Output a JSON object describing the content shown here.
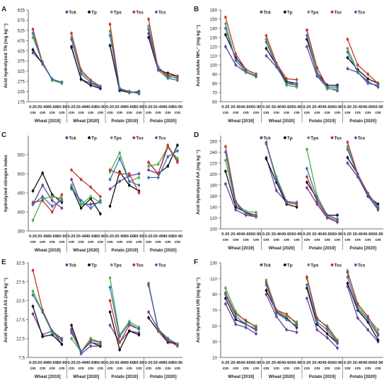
{
  "figure": {
    "tick_rows": [
      "0-20",
      "20-40",
      "40-60",
      "60-90"
    ],
    "unit_row": "cm",
    "groups": [
      "Wheat [2019]",
      "Wheat [2020]",
      "Potato [2019]",
      "Potato [2020]"
    ],
    "series": [
      {
        "name": "Tck",
        "color": "#6a3d9a"
      },
      {
        "name": "Tp",
        "color": "#111111"
      },
      {
        "name": "Tps",
        "color": "#4daf4a"
      },
      {
        "name": "Tss",
        "color": "#c0392b"
      },
      {
        "name": "Tcs",
        "color": "#3b6fb6"
      }
    ]
  },
  "chart_data": [
    {
      "panel": "A",
      "type": "line",
      "ylabel": "Acid hydrolyzed TN (mg kg⁻¹)",
      "ylim": [
        175,
        625
      ],
      "yticks": [
        175,
        225,
        275,
        325,
        375,
        425,
        475,
        525,
        575,
        625
      ],
      "series": [
        {
          "name": "Tck",
          "values": [
            [
              415,
              365,
              285,
              270
            ],
            [
              440,
              285,
              265,
              245
            ],
            [
              450,
              235,
              225,
              215
            ],
            [
              510,
              345,
              300,
              290
            ]
          ]
        },
        {
          "name": "Tp",
          "values": [
            [
              430,
              360,
              285,
              270
            ],
            [
              445,
              285,
              255,
              240
            ],
            [
              450,
              230,
              220,
              225
            ],
            [
              490,
              330,
              315,
              300
            ]
          ]
        },
        {
          "name": "Tps",
          "values": [
            [
              490,
              370,
              280,
              265
            ],
            [
              490,
              320,
              280,
              250
            ],
            [
              520,
              240,
              225,
              220
            ],
            [
              545,
              340,
              295,
              295
            ]
          ]
        },
        {
          "name": "Tss",
          "values": [
            [
              530,
              365,
              285,
              270
            ],
            [
              510,
              330,
              280,
              250
            ],
            [
              555,
              240,
              225,
              215
            ],
            [
              580,
              335,
              305,
              300
            ]
          ]
        },
        {
          "name": "Tcs",
          "values": [
            [
              510,
              360,
              285,
              270
            ],
            [
              480,
              310,
              270,
              250
            ],
            [
              500,
              240,
              222,
              218
            ],
            [
              530,
              330,
              290,
              280
            ]
          ]
        }
      ]
    },
    {
      "panel": "B",
      "type": "line",
      "ylabel": "Acid soluble NH₄⁺ (mg kg⁻¹)",
      "ylim": [
        60,
        160
      ],
      "yticks": [
        60,
        70,
        80,
        90,
        100,
        110,
        120,
        130,
        140,
        150,
        160
      ],
      "series": [
        {
          "name": "Tck",
          "values": [
            [
              120,
              100,
              92,
              88
            ],
            [
              110,
              98,
              80,
              78
            ],
            [
              120,
              88,
              75,
              72
            ],
            [
              96,
              92,
              82,
              76
            ]
          ]
        },
        {
          "name": "Tp",
          "values": [
            [
              133,
              108,
              95,
              90
            ],
            [
              118,
              100,
              82,
              80
            ],
            [
              128,
              92,
              78,
              78
            ],
            [
              108,
              95,
              85,
              80
            ]
          ]
        },
        {
          "name": "Tps",
          "values": [
            [
              145,
              105,
              92,
              87
            ],
            [
              128,
              100,
              78,
              76
            ],
            [
              138,
              92,
              74,
              74
            ],
            [
              118,
              93,
              80,
              78
            ]
          ]
        },
        {
          "name": "Tss",
          "values": [
            [
              152,
              112,
              95,
              90
            ],
            [
              132,
              102,
              85,
              84
            ],
            [
              138,
              97,
              76,
              76
            ],
            [
              128,
              100,
              90,
              80
            ]
          ]
        },
        {
          "name": "Tcs",
          "values": [
            [
              140,
              105,
              93,
              88
            ],
            [
              125,
              99,
              80,
              80
            ],
            [
              132,
              90,
              76,
              76
            ],
            [
              114,
              92,
              80,
              78
            ]
          ]
        }
      ]
    },
    {
      "panel": "C",
      "type": "line",
      "ylabel": "hydrolyzed nitrogen index",
      "ylim": [
        350,
        600
      ],
      "yticks": [
        350,
        400,
        450,
        500,
        550
      ],
      "series": [
        {
          "name": "Tck",
          "values": [
            [
              420,
              470,
              430,
              410
            ],
            [
              485,
              420,
              420,
              425
            ],
            [
              460,
              480,
              495,
              500
            ],
            [
              510,
              500,
              570,
              535
            ]
          ]
        },
        {
          "name": "Tp",
          "values": [
            [
              455,
              502,
              445,
              425
            ],
            [
              465,
              410,
              435,
              395
            ],
            [
              415,
              505,
              470,
              455
            ],
            [
              530,
              500,
              520,
              575
            ]
          ]
        },
        {
          "name": "Tps",
          "values": [
            [
              378,
              435,
              440,
              435
            ],
            [
              470,
              420,
              440,
              425
            ],
            [
              505,
              555,
              480,
              490
            ],
            [
              520,
              525,
              570,
              540
            ]
          ]
        },
        {
          "name": "Tss",
          "values": [
            [
              425,
              430,
              400,
              445
            ],
            [
              510,
              485,
              465,
              440
            ],
            [
              510,
              500,
              500,
              450
            ],
            [
              530,
              500,
              575,
              530
            ]
          ]
        },
        {
          "name": "Tcs",
          "values": [
            [
              420,
              440,
              415,
              430
            ],
            [
              460,
              430,
              410,
              430
            ],
            [
              485,
              540,
              480,
              470
            ],
            [
              490,
              490,
              545,
              560
            ]
          ]
        }
      ]
    },
    {
      "panel": "D",
      "type": "line",
      "ylabel": "Acid hydrolyzed AA (mg kg⁻¹)",
      "ylim": [
        100,
        270
      ],
      "yticks": [
        100,
        120,
        140,
        160,
        180,
        200,
        220,
        240,
        260
      ],
      "series": [
        {
          "name": "Tck",
          "values": [
            [
              182,
              135,
              125,
              122
            ],
            [
              230,
              170,
              148,
              145
            ],
            [
              175,
              145,
              120,
              112
            ],
            [
              220,
              195,
              160,
              135
            ]
          ]
        },
        {
          "name": "Tp",
          "values": [
            [
              205,
              140,
              130,
              125
            ],
            [
              228,
              185,
              145,
              140
            ],
            [
              185,
              155,
              125,
              125
            ],
            [
              230,
              200,
              160,
              145
            ]
          ]
        },
        {
          "name": "Tps",
          "values": [
            [
              225,
              145,
              132,
              130
            ],
            [
              255,
              195,
              150,
              148
            ],
            [
              245,
              160,
              125,
              118
            ],
            [
              250,
              200,
              165,
              140
            ]
          ]
        },
        {
          "name": "Tss",
          "values": [
            [
              250,
              150,
              128,
              122
            ],
            [
              258,
              190,
              148,
              145
            ],
            [
              195,
              150,
              122,
              115
            ],
            [
              258,
              200,
              165,
              138
            ]
          ]
        },
        {
          "name": "Tcs",
          "values": [
            [
              240,
              145,
              128,
              125
            ],
            [
              255,
              190,
              150,
              148
            ],
            [
              210,
              155,
              125,
              118
            ],
            [
              245,
              198,
              162,
              140
            ]
          ]
        }
      ]
    },
    {
      "panel": "E",
      "type": "line",
      "ylabel": "Acid hydrolyzed AS (mg kg⁻¹)",
      "ylim": [
        7.5,
        32.5
      ],
      "yticks": [
        7.5,
        12.5,
        17.5,
        22.5,
        27.5,
        32.5
      ],
      "series": [
        {
          "name": "Tck",
          "values": [
            [
              19,
              13.5,
              14.5,
              11
            ],
            [
              15,
              8.5,
              10.5,
              10.5
            ],
            [
              16,
              11.5,
              14.5,
              14
            ],
            [
              19.5,
              15,
              12,
              11
            ]
          ]
        },
        {
          "name": "Tp",
          "values": [
            [
              21,
              13,
              13.5,
              11
            ],
            [
              16,
              9,
              11.5,
              10.5
            ],
            [
              19.5,
              9.5,
              14.5,
              13.5
            ],
            [
              18,
              14.5,
              11.5,
              11
            ]
          ]
        },
        {
          "name": "Tps",
          "values": [
            [
              25,
              19.5,
              14,
              12
            ],
            [
              12.5,
              9,
              12.5,
              11.5
            ],
            [
              28.5,
              13.5,
              17,
              15.5
            ],
            [
              27,
              15,
              12.5,
              11
            ]
          ]
        },
        {
          "name": "Tss",
          "values": [
            [
              30.5,
              20,
              14.5,
              12.5
            ],
            [
              14.5,
              9,
              12,
              11.5
            ],
            [
              22.5,
              11.5,
              16,
              15
            ],
            [
              27,
              14.5,
              12,
              10.5
            ]
          ]
        },
        {
          "name": "Tcs",
          "values": [
            [
              24,
              19.5,
              14.5,
              12
            ],
            [
              14,
              9,
              11.5,
              11
            ],
            [
              26,
              13,
              16.5,
              15
            ],
            [
              26.5,
              15,
              12.5,
              11
            ]
          ]
        }
      ]
    },
    {
      "panel": "F",
      "type": "line",
      "ylabel": "Acid hydrolyzed UN (mg kg⁻¹)",
      "ylim": [
        10,
        130
      ],
      "yticks": [
        10,
        30,
        50,
        70,
        90,
        110,
        130
      ],
      "series": [
        {
          "name": "Tck",
          "values": [
            [
              78,
              52,
              48,
              40
            ],
            [
              90,
              62,
              45,
              42
            ],
            [
              85,
              45,
              35,
              22
            ],
            [
              100,
              60,
              45,
              30
            ]
          ]
        },
        {
          "name": "Tp",
          "values": [
            [
              85,
              58,
              52,
              45
            ],
            [
              95,
              68,
              60,
              48
            ],
            [
              98,
              52,
              40,
              28
            ],
            [
              104,
              70,
              55,
              32
            ]
          ]
        },
        {
          "name": "Tps",
          "values": [
            [
              98,
              68,
              55,
              50
            ],
            [
              108,
              70,
              62,
              55
            ],
            [
              110,
              58,
              50,
              32
            ],
            [
              120,
              75,
              60,
              45
            ]
          ]
        },
        {
          "name": "Tss",
          "values": [
            [
              92,
              65,
              57,
              48
            ],
            [
              105,
              70,
              65,
              52
            ],
            [
              112,
              60,
              48,
              30
            ],
            [
              118,
              78,
              62,
              40
            ]
          ]
        },
        {
          "name": "Tcs",
          "values": [
            [
              90,
              62,
              52,
              46
            ],
            [
              102,
              66,
              58,
              50
            ],
            [
              102,
              55,
              45,
              28
            ],
            [
              112,
              72,
              58,
              38
            ]
          ]
        }
      ]
    }
  ]
}
